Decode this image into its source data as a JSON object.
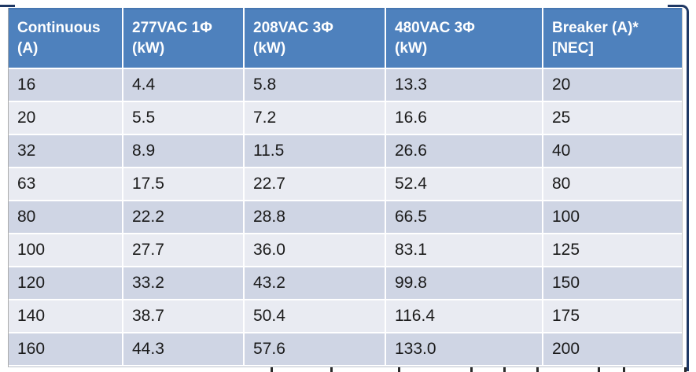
{
  "colors": {
    "header_bg": "#4E81BD",
    "header_text": "#FFFFFF",
    "row_dark": "#CFD5E4",
    "row_light": "#E9EBF2",
    "body_text": "#1A1A1A",
    "frame_line": "#1F3864",
    "table_border": "#ABABAB"
  },
  "table": {
    "headers": [
      {
        "line1": "Continuous",
        "line2": "(A)"
      },
      {
        "line1": "277VAC 1Φ",
        "line2": "(kW)"
      },
      {
        "line1": "208VAC 3Φ",
        "line2": "(kW)"
      },
      {
        "line1": "480VAC 3Φ",
        "line2": "(kW)"
      },
      {
        "line1": "Breaker (A)*",
        "line2": "[NEC]"
      }
    ],
    "rows": [
      [
        "16",
        "4.4",
        "5.8",
        "13.3",
        "20"
      ],
      [
        "20",
        "5.5",
        "7.2",
        "16.6",
        "25"
      ],
      [
        "32",
        "8.9",
        "11.5",
        "26.6",
        "40"
      ],
      [
        "63",
        "17.5",
        "22.7",
        "52.4",
        "80"
      ],
      [
        "80",
        "22.2",
        "28.8",
        "66.5",
        "100"
      ],
      [
        "100",
        "27.7",
        "36.0",
        "83.1",
        "125"
      ],
      [
        "120",
        "33.2",
        "43.2",
        "99.8",
        "150"
      ],
      [
        "140",
        "38.7",
        "50.4",
        "116.4",
        "175"
      ],
      [
        "160",
        "44.3",
        "57.6",
        "133.0",
        "200"
      ]
    ]
  }
}
